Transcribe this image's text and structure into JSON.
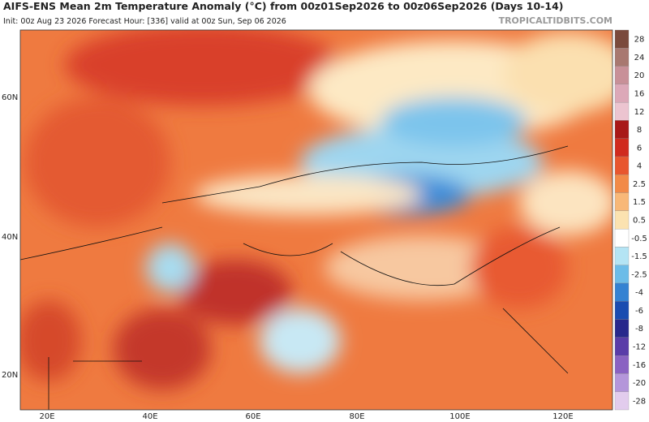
{
  "header": {
    "title": "AIFS-ENS Mean 2m Temperature Anomaly (°C) from 00z01Sep2026 to 00z06Sep2026 (Days 10-14)",
    "subtitle": "Init: 00z Aug 23 2026   Forecast Hour: [336]   valid at 00z Sun, Sep 06 2026",
    "site": "TROPICALTIDBITS.COM"
  },
  "map": {
    "lat_labels": [
      "60N",
      "40N",
      "20N"
    ],
    "lon_labels": [
      "20E",
      "40E",
      "60E",
      "80E",
      "100E",
      "120E"
    ]
  },
  "colorbar": {
    "labels": [
      28,
      24,
      20,
      16,
      12,
      8,
      6,
      4,
      2.5,
      1.5,
      0.5,
      -0.5,
      -1.5,
      -2.5,
      -4,
      -6,
      -8,
      -12,
      -16,
      -20,
      -28
    ],
    "colors": [
      "#7a4a3c",
      "#a87870",
      "#c89098",
      "#dca8b8",
      "#ecc4d0",
      "#a81818",
      "#d02a1e",
      "#e8562e",
      "#f28a48",
      "#f8b878",
      "#fbe2b0",
      "#ffffff",
      "#b4e4f4",
      "#6cbce8",
      "#3482d2",
      "#1a4cb0",
      "#28288c",
      "#5a3ca8",
      "#8a62c2",
      "#b496da",
      "#e2cced"
    ]
  }
}
